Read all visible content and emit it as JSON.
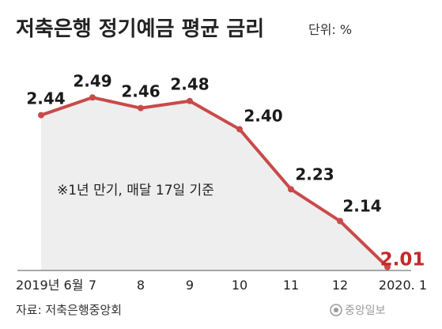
{
  "title": "저축은행 정기예금 평균 금리",
  "unit_label": "단위: %",
  "note": "※1년 만기, 매달 17일 기준",
  "source": "자료: 저축은행중앙회",
  "logo": {
    "text": "중앙일보",
    "icon": "joongang-logo-icon"
  },
  "colors": {
    "line": "#c94a4a",
    "area": "#eeeeee",
    "highlight": "#c62828"
  },
  "chart_data": {
    "type": "line",
    "title": "저축은행 정기예금 평균 금리",
    "unit": "%",
    "categories": [
      "2019년 6월",
      "7",
      "8",
      "9",
      "10",
      "11",
      "12",
      "2020. 1"
    ],
    "values": [
      2.44,
      2.49,
      2.46,
      2.48,
      2.4,
      2.23,
      2.14,
      2.01
    ],
    "data_labels": [
      "2.44",
      "2.49",
      "2.46",
      "2.48",
      "2.40",
      "2.23",
      "2.14",
      "2.01"
    ],
    "ylim": [
      2.0,
      2.56
    ],
    "fill_area": true,
    "grid": false,
    "legend": "none"
  }
}
